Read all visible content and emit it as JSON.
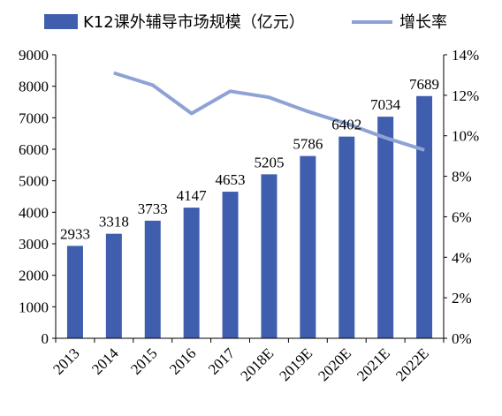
{
  "chart_data": {
    "type": "bar",
    "categories": [
      "2013",
      "2014",
      "2015",
      "2016",
      "2017",
      "2018E",
      "2019E",
      "2020E",
      "2021E",
      "2022E"
    ],
    "series": [
      {
        "name": "K12课外辅导市场规模（亿元）",
        "type": "bar",
        "axis": "left",
        "color": "#3f5fae",
        "values": [
          2933,
          3318,
          3733,
          4147,
          4653,
          5205,
          5786,
          6402,
          7034,
          7689
        ],
        "labels": [
          "2933",
          "3318",
          "3733",
          "4147",
          "4653",
          "5205",
          "5786",
          "6402",
          "7034",
          "7689"
        ]
      },
      {
        "name": "增长率",
        "type": "line",
        "axis": "right",
        "color": "#8ea2d6",
        "values": [
          null,
          13.1,
          12.5,
          11.1,
          12.2,
          11.9,
          11.2,
          10.6,
          9.9,
          9.3
        ]
      }
    ],
    "y_left": {
      "min": 0,
      "max": 9000,
      "ticks": [
        "0",
        "1000",
        "2000",
        "3000",
        "4000",
        "5000",
        "6000",
        "7000",
        "8000",
        "9000"
      ]
    },
    "y_right": {
      "min": 0,
      "max": 14,
      "ticks": [
        "0%",
        "2%",
        "4%",
        "6%",
        "8%",
        "10%",
        "12%",
        "14%"
      ]
    },
    "legend_position": "top",
    "grid": false
  }
}
